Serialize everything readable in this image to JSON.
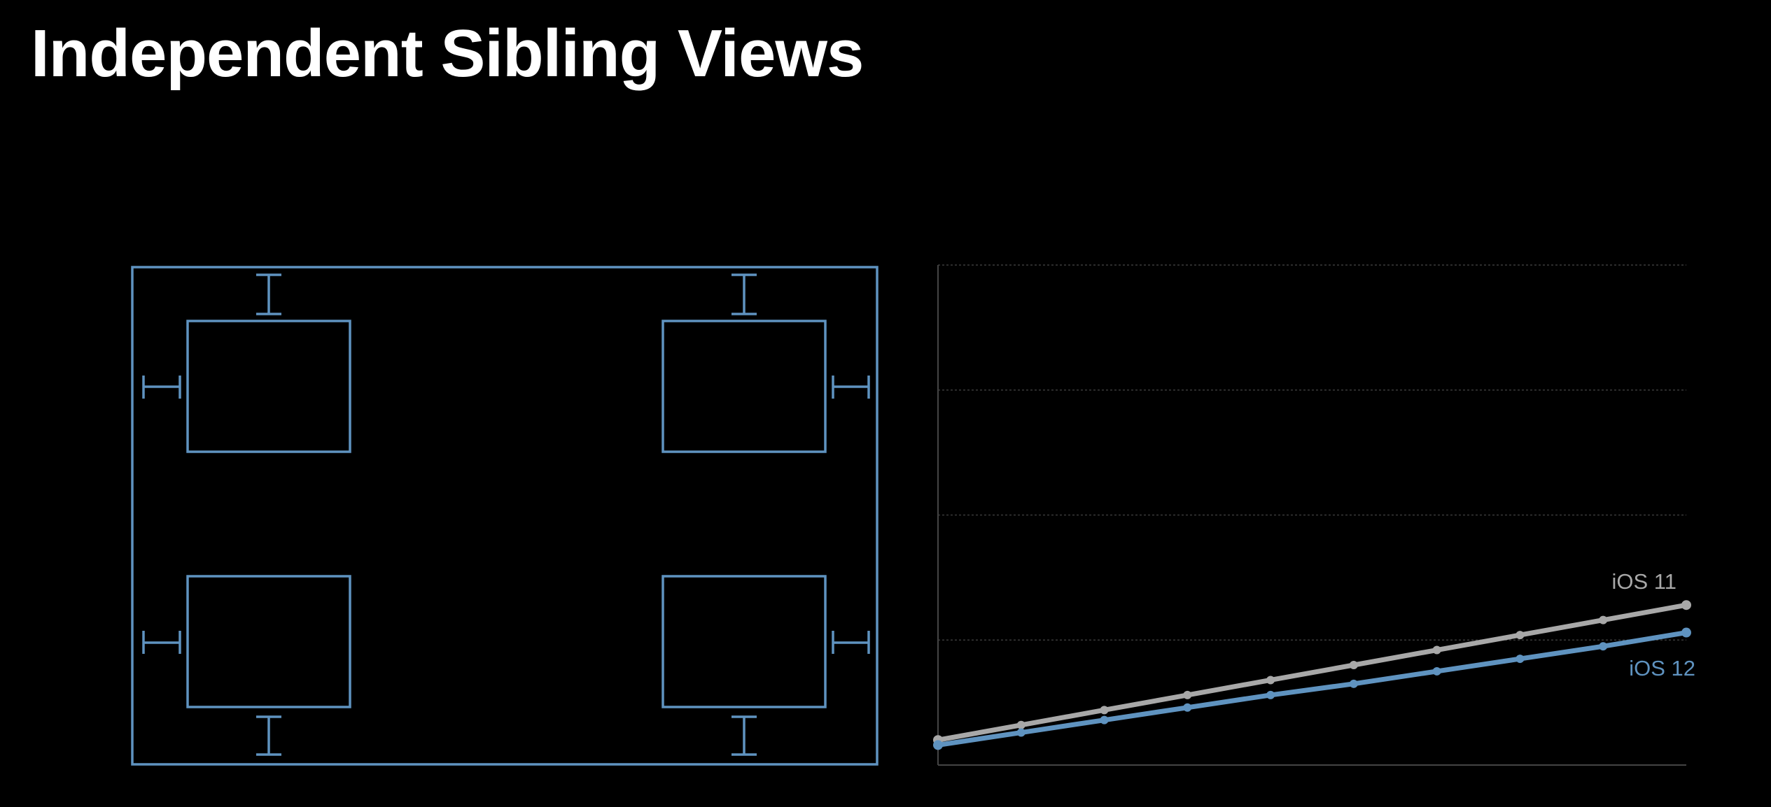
{
  "title": "Independent Sibling Views",
  "colors": {
    "accent_blue": "#5f93c0",
    "gray": "#a8a8a8",
    "grid": "#3a3a3a",
    "background": "#000000"
  },
  "diagram": {
    "description_items": [
      "container-view",
      "subview-top-left",
      "subview-top-right",
      "subview-bottom-left",
      "subview-bottom-right"
    ]
  },
  "chart_data": {
    "type": "line",
    "title": "",
    "xlabel": "",
    "ylabel": "",
    "x": [
      1,
      2,
      3,
      4,
      5,
      6,
      7,
      8,
      9,
      10
    ],
    "xlim": [
      1,
      10
    ],
    "ylim": [
      0,
      4
    ],
    "grid": true,
    "gridlines_y": [
      1,
      2,
      3,
      4
    ],
    "legend": "inline-right",
    "series": [
      {
        "name": "iOS 11",
        "color": "#a8a8a8",
        "values": [
          0.2,
          0.32,
          0.44,
          0.56,
          0.68,
          0.8,
          0.92,
          1.04,
          1.16,
          1.28
        ]
      },
      {
        "name": "iOS 12",
        "color": "#5f93c0",
        "values": [
          0.16,
          0.26,
          0.36,
          0.46,
          0.56,
          0.65,
          0.75,
          0.85,
          0.95,
          1.06
        ]
      }
    ]
  }
}
